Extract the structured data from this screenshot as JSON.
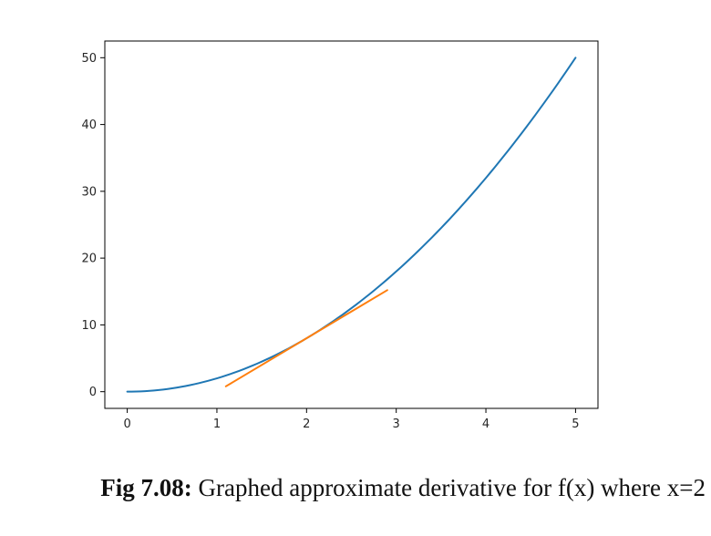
{
  "chart_data": {
    "type": "line",
    "title": "",
    "xlabel": "",
    "ylabel": "",
    "xlim": [
      -0.25,
      5.25
    ],
    "ylim": [
      -2.5,
      52.5
    ],
    "xticks": [
      0,
      1,
      2,
      3,
      4,
      5
    ],
    "yticks": [
      0,
      10,
      20,
      30,
      40,
      50
    ],
    "grid": false,
    "legend": "none",
    "series": [
      {
        "function": "2*x^2",
        "x_range": [
          0,
          5
        ],
        "color": "#1f77b4",
        "points": [
          [
            0,
            0
          ],
          [
            0.5,
            0.5
          ],
          [
            1,
            2
          ],
          [
            1.5,
            4.5
          ],
          [
            2,
            8
          ],
          [
            2.5,
            12.5
          ],
          [
            3,
            18
          ],
          [
            3.5,
            24.5
          ],
          [
            4,
            32
          ],
          [
            4.5,
            40.5
          ],
          [
            5,
            50
          ]
        ]
      },
      {
        "function": "tangent at x=2",
        "color": "#ff7f0e",
        "points": [
          [
            1.1,
            0.8
          ],
          [
            2.9,
            15.2
          ]
        ]
      }
    ]
  },
  "caption": {
    "label": "Fig 7.08:",
    "text": " Graphed approximate derivative for f(x) where x=2"
  }
}
